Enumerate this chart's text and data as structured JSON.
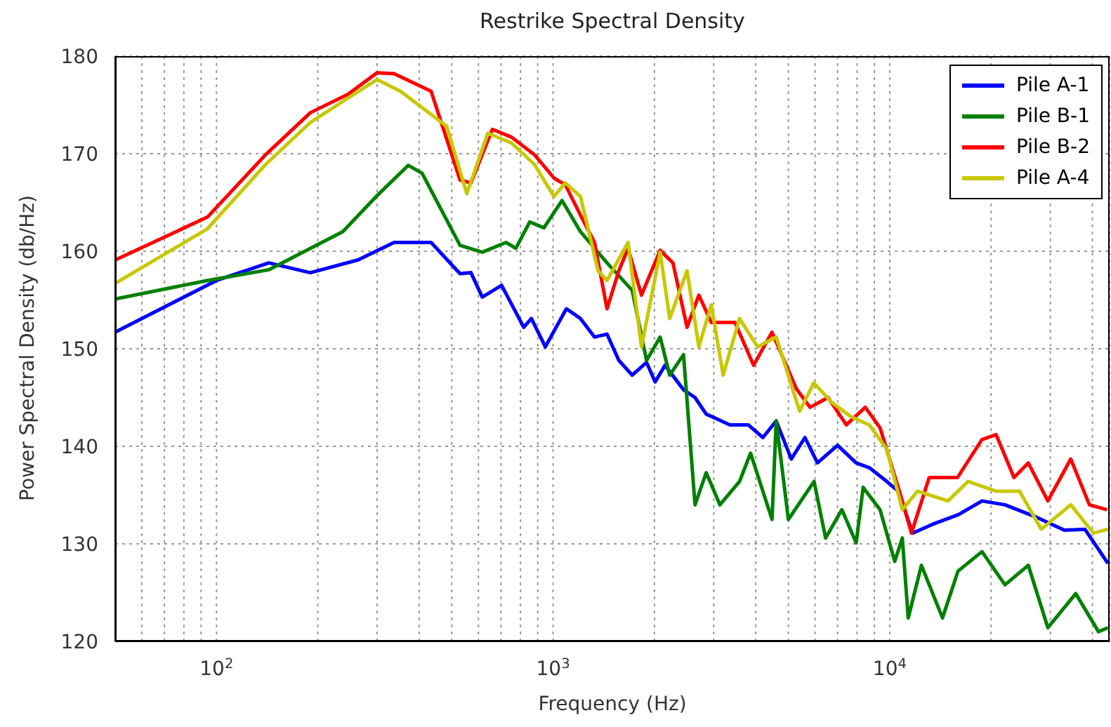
{
  "chart_data": {
    "type": "line",
    "title": "Restrike Spectral Density",
    "xlabel": "Frequency (Hz)",
    "ylabel": "Power Spectral Density (db/Hz)",
    "log": "x",
    "grid": true,
    "legend": "top right",
    "marker": "none",
    "line_style": "solid",
    "xlim": [
      50,
      45000
    ],
    "ylim": [
      120,
      180
    ],
    "yticks": [
      120,
      130,
      140,
      150,
      160,
      170,
      180
    ],
    "xticks": [
      {
        "value": 60,
        "label": null
      },
      {
        "value": 70,
        "label": null
      },
      {
        "value": 80,
        "label": null
      },
      {
        "value": 90,
        "label": null
      },
      {
        "value": 100,
        "label": "10$^{2}$"
      },
      {
        "value": 200,
        "label": null
      },
      {
        "value": 300,
        "label": null
      },
      {
        "value": 400,
        "label": null
      },
      {
        "value": 500,
        "label": null
      },
      {
        "value": 600,
        "label": null
      },
      {
        "value": 700,
        "label": null
      },
      {
        "value": 800,
        "label": null
      },
      {
        "value": 900,
        "label": null
      },
      {
        "value": 1000,
        "label": "10$^{3}$"
      },
      {
        "value": 2000,
        "label": null
      },
      {
        "value": 3000,
        "label": null
      },
      {
        "value": 4000,
        "label": null
      },
      {
        "value": 5000,
        "label": null
      },
      {
        "value": 6000,
        "label": null
      },
      {
        "value": 7000,
        "label": null
      },
      {
        "value": 8000,
        "label": null
      },
      {
        "value": 9000,
        "label": null
      },
      {
        "value": 10000,
        "label": "10$^{4}$"
      },
      {
        "value": 20000,
        "label": null
      },
      {
        "value": 30000,
        "label": null
      },
      {
        "value": 40000,
        "label": null
      }
    ],
    "series": [
      {
        "name": "Pile A-1",
        "color": "#0000ff",
        "x": [
          50,
          100,
          143,
          190,
          263,
          337,
          434,
          529,
          570,
          616,
          703,
          818,
          862,
          948,
          1095,
          1206,
          1327,
          1446,
          1568,
          1717,
          1895,
          2010,
          2150,
          2440,
          2640,
          2850,
          3350,
          3800,
          4200,
          4600,
          5100,
          5600,
          6100,
          7000,
          7950,
          8700,
          9800,
          10600,
          11700,
          13400,
          16000,
          18800,
          22000,
          27000,
          33000,
          38000,
          44500
        ],
        "values": [
          151.7,
          157,
          158.8,
          157.8,
          159.1,
          160.9,
          160.9,
          157.7,
          157.8,
          155.3,
          156.5,
          152.2,
          153.1,
          150.2,
          154.1,
          153.1,
          151.2,
          151.5,
          148.8,
          147.3,
          148.6,
          146.6,
          148.3,
          145.8,
          145,
          143.3,
          142.2,
          142.2,
          140.9,
          142.6,
          138.7,
          140.9,
          138.3,
          140.1,
          138.3,
          137.8,
          136.4,
          135.4,
          131.1,
          132,
          133,
          134.4,
          134,
          132.8,
          131.4,
          131.5,
          128
        ]
      },
      {
        "name": "Pile B-1",
        "color": "#008000",
        "x": [
          50,
          94,
          143,
          237,
          298,
          371,
          408,
          529,
          616,
          725,
          775,
          852,
          939,
          1063,
          1206,
          1446,
          1717,
          1895,
          2080,
          2220,
          2440,
          2640,
          2850,
          3130,
          3580,
          3860,
          4470,
          4600,
          5000,
          5960,
          6450,
          7210,
          7950,
          8340,
          8500,
          9360,
          10350,
          10900,
          11350,
          12420,
          14350,
          15950,
          18800,
          22000,
          25800,
          29500,
          35700,
          41700,
          44500
        ],
        "values": [
          155.1,
          157,
          158.1,
          162,
          165.6,
          168.8,
          168,
          160.6,
          159.9,
          160.9,
          160.3,
          163,
          162.4,
          165.2,
          162,
          158.8,
          156,
          148.8,
          151.2,
          147.3,
          149.4,
          134,
          137.3,
          134,
          136.4,
          139.3,
          132.5,
          142.6,
          132.5,
          136.4,
          130.6,
          133.5,
          130.1,
          135.8,
          135.4,
          133.5,
          128.2,
          130.6,
          122.4,
          127.8,
          122.4,
          127.2,
          129.2,
          125.8,
          127.8,
          121.4,
          124.9,
          121,
          121.4
        ]
      },
      {
        "name": "Pile B-2",
        "color": "#ff0000",
        "x": [
          50,
          94,
          140,
          190,
          246,
          300,
          337,
          434,
          529,
          570,
          660,
          752,
          880,
          1006,
          1087,
          1206,
          1327,
          1446,
          1568,
          1670,
          1830,
          2080,
          2270,
          2500,
          2710,
          2950,
          3470,
          3940,
          4470,
          5280,
          5800,
          6560,
          7430,
          8460,
          9360,
          10900,
          11600,
          13100,
          15900,
          18800,
          20700,
          23400,
          25800,
          29500,
          34500,
          39200,
          44200
        ],
        "values": [
          159.1,
          163.5,
          169.9,
          174.2,
          176.1,
          178.3,
          178.2,
          176.4,
          167.3,
          167,
          172.5,
          171.7,
          169.9,
          167.5,
          166.8,
          163.7,
          160.9,
          154.1,
          158,
          160.3,
          155.5,
          160.1,
          158.8,
          152.2,
          155.5,
          152.7,
          152.7,
          148.3,
          151.7,
          145.9,
          144,
          145,
          142.2,
          144,
          141.9,
          134.4,
          131.1,
          136.8,
          136.8,
          140.7,
          141.2,
          136.8,
          138.3,
          134.4,
          138.7,
          134,
          133.5
        ]
      },
      {
        "name": "Pile A-4",
        "color": "#c8c800",
        "x": [
          50,
          94,
          140,
          190,
          246,
          300,
          352,
          483,
          554,
          640,
          752,
          880,
          1006,
          1087,
          1206,
          1360,
          1446,
          1670,
          1830,
          2080,
          2220,
          2500,
          2710,
          2950,
          3200,
          3580,
          4050,
          4600,
          5400,
          5950,
          6730,
          7700,
          8700,
          9800,
          10900,
          12100,
          14900,
          17100,
          20700,
          24300,
          28200,
          34500,
          40300,
          44500
        ],
        "values": [
          156.7,
          162.3,
          168.9,
          173.2,
          175.7,
          177.6,
          176.4,
          172.8,
          165.9,
          172.1,
          171.1,
          168.9,
          165.6,
          167,
          165.6,
          158,
          157,
          160.9,
          150.2,
          159.9,
          153.1,
          158,
          150.2,
          154.5,
          147.3,
          153.1,
          150.2,
          151.2,
          143.6,
          146.5,
          144.5,
          143,
          142.2,
          139.7,
          133.5,
          135.4,
          134.4,
          136.4,
          135.4,
          135.4,
          131.5,
          134,
          131.1,
          131.5
        ]
      }
    ]
  }
}
